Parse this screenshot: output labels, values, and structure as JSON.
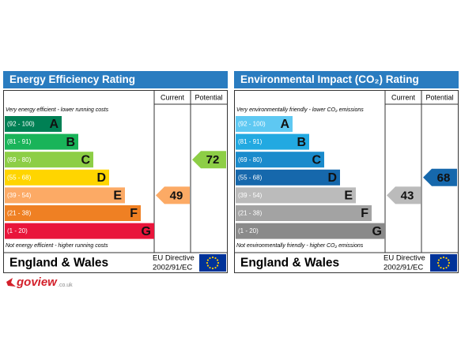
{
  "panels": [
    {
      "title": "Energy Efficiency Rating",
      "columns": [
        "Current",
        "Potential"
      ],
      "top_note": "Very energy efficient - lower running costs",
      "bottom_note": "Not energy efficient - higher running costs",
      "bands": [
        {
          "range": "(92 - 100)",
          "letter": "A",
          "color": "#008054"
        },
        {
          "range": "(81 - 91)",
          "letter": "B",
          "color": "#19b459"
        },
        {
          "range": "(69 - 80)",
          "letter": "C",
          "color": "#8dce46"
        },
        {
          "range": "(55 - 68)",
          "letter": "D",
          "color": "#ffd500"
        },
        {
          "range": "(39 - 54)",
          "letter": "E",
          "color": "#fcaa65"
        },
        {
          "range": "(21 - 38)",
          "letter": "F",
          "color": "#ef8023"
        },
        {
          "range": "(1 - 20)",
          "letter": "G",
          "color": "#e9153b"
        }
      ],
      "current": 49,
      "potential": 72,
      "region": "England & Wales",
      "directive": [
        "EU Directive",
        "2002/91/EC"
      ]
    },
    {
      "title": "Environmental Impact (CO₂) Rating",
      "columns": [
        "Current",
        "Potential"
      ],
      "top_note": "Very environmentally friendly - lower CO₂ emissions",
      "bottom_note": "Not environmentally friendly - higher CO₂ emissions",
      "bands": [
        {
          "range": "(92 - 100)",
          "letter": "A",
          "color": "#5ec8f2"
        },
        {
          "range": "(81 - 91)",
          "letter": "B",
          "color": "#22a9e1"
        },
        {
          "range": "(69 - 80)",
          "letter": "C",
          "color": "#1a8bcc"
        },
        {
          "range": "(55 - 68)",
          "letter": "D",
          "color": "#1668ac"
        },
        {
          "range": "(39 - 54)",
          "letter": "E",
          "color": "#bbbbbb"
        },
        {
          "range": "(21 - 38)",
          "letter": "F",
          "color": "#a3a3a3"
        },
        {
          "range": "(1 - 20)",
          "letter": "G",
          "color": "#8a8a8a"
        }
      ],
      "current": 43,
      "potential": 68,
      "region": "England & Wales",
      "directive": [
        "EU Directive",
        "2002/91/EC"
      ]
    }
  ],
  "logo": {
    "name": "goview",
    "domain": ".co.uk"
  }
}
